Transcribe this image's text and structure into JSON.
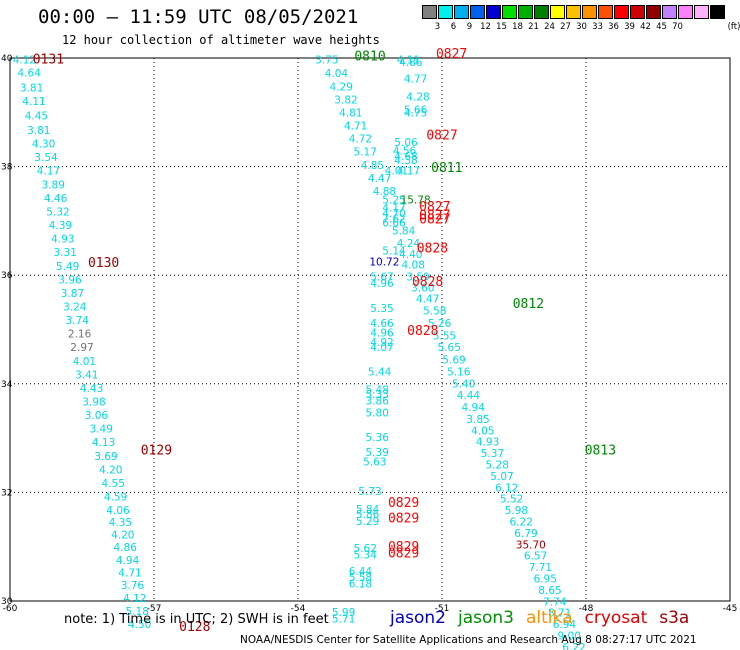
{
  "header": {
    "title": "00:00 – 11:59 UTC 08/05/2021",
    "subtitle": "12 hour collection of altimeter wave heights"
  },
  "scale": {
    "unit": "(ft)",
    "colors": [
      "#808080",
      "#00f0f0",
      "#00b0f0",
      "#0060f0",
      "#0000d0",
      "#00e000",
      "#00b000",
      "#008000",
      "#ffff00",
      "#ffc000",
      "#ff9000",
      "#ff5000",
      "#ff0000",
      "#d00000",
      "#900000",
      "#c080ff",
      "#ff80ff",
      "#ffb0ff",
      "#000000"
    ],
    "labels": [
      "3",
      "6",
      "9",
      "12",
      "15",
      "18",
      "21",
      "24",
      "27",
      "30",
      "33",
      "36",
      "39",
      "42",
      "45",
      "70"
    ]
  },
  "axes": {
    "x_labels": [
      "-60",
      "-57",
      "-54",
      "-51",
      "-48",
      "-45"
    ],
    "y_labels": [
      "40",
      "38",
      "36",
      "34",
      "32",
      "30"
    ]
  },
  "observations": [
    {
      "t": "4.12",
      "lon": -59.7,
      "lat": 39.9,
      "c": "cyan"
    },
    {
      "t": "4.64",
      "lon": -59.6,
      "lat": 39.66,
      "c": "cyan"
    },
    {
      "t": "3.81",
      "lon": -59.55,
      "lat": 39.38,
      "c": "cyan"
    },
    {
      "t": "4.11",
      "lon": -59.5,
      "lat": 39.13,
      "c": "cyan"
    },
    {
      "t": "4.45",
      "lon": -59.45,
      "lat": 38.87,
      "c": "cyan"
    },
    {
      "t": "3.81",
      "lon": -59.4,
      "lat": 38.6,
      "c": "cyan"
    },
    {
      "t": "4.30",
      "lon": -59.3,
      "lat": 38.35,
      "c": "cyan"
    },
    {
      "t": "3.54",
      "lon": -59.25,
      "lat": 38.1,
      "c": "cyan"
    },
    {
      "t": "4.17",
      "lon": -59.2,
      "lat": 37.85,
      "c": "cyan"
    },
    {
      "t": "3.89",
      "lon": -59.1,
      "lat": 37.6,
      "c": "cyan"
    },
    {
      "t": "4.46",
      "lon": -59.05,
      "lat": 37.35,
      "c": "cyan"
    },
    {
      "t": "5.32",
      "lon": -59.0,
      "lat": 37.1,
      "c": "cyan"
    },
    {
      "t": "4.39",
      "lon": -58.95,
      "lat": 36.85,
      "c": "cyan"
    },
    {
      "t": "4.93",
      "lon": -58.9,
      "lat": 36.6,
      "c": "cyan"
    },
    {
      "t": "3.31",
      "lon": -58.85,
      "lat": 36.35,
      "c": "cyan"
    },
    {
      "t": "5.49",
      "lon": -58.8,
      "lat": 36.1,
      "c": "cyan"
    },
    {
      "t": "3.96",
      "lon": -58.75,
      "lat": 35.85,
      "c": "cyan"
    },
    {
      "t": "3.87",
      "lon": -58.7,
      "lat": 35.6,
      "c": "cyan"
    },
    {
      "t": "3.24",
      "lon": -58.65,
      "lat": 35.35,
      "c": "cyan"
    },
    {
      "t": "3.74",
      "lon": -58.6,
      "lat": 35.1,
      "c": "cyan"
    },
    {
      "t": "2.16",
      "lon": -58.55,
      "lat": 34.85,
      "c": "gray"
    },
    {
      "t": "2.97",
      "lon": -58.5,
      "lat": 34.6,
      "c": "gray"
    },
    {
      "t": "4.01",
      "lon": -58.45,
      "lat": 34.35,
      "c": "cyan"
    },
    {
      "t": "3.41",
      "lon": -58.4,
      "lat": 34.1,
      "c": "cyan"
    },
    {
      "t": "4.43",
      "lon": -58.3,
      "lat": 33.85,
      "c": "cyan"
    },
    {
      "t": "3.98",
      "lon": -58.25,
      "lat": 33.6,
      "c": "cyan"
    },
    {
      "t": "3.06",
      "lon": -58.2,
      "lat": 33.35,
      "c": "cyan"
    },
    {
      "t": "3.49",
      "lon": -58.1,
      "lat": 33.1,
      "c": "cyan"
    },
    {
      "t": "4.13",
      "lon": -58.05,
      "lat": 32.85,
      "c": "cyan"
    },
    {
      "t": "3.69",
      "lon": -58.0,
      "lat": 32.6,
      "c": "cyan"
    },
    {
      "t": "4.20",
      "lon": -57.9,
      "lat": 32.35,
      "c": "cyan"
    },
    {
      "t": "4.55",
      "lon": -57.85,
      "lat": 32.1,
      "c": "cyan"
    },
    {
      "t": "4.59",
      "lon": -57.8,
      "lat": 31.85,
      "c": "cyan"
    },
    {
      "t": "4.06",
      "lon": -57.75,
      "lat": 31.6,
      "c": "cyan"
    },
    {
      "t": "4.35",
      "lon": -57.7,
      "lat": 31.38,
      "c": "cyan"
    },
    {
      "t": "4.20",
      "lon": -57.65,
      "lat": 31.15,
      "c": "cyan"
    },
    {
      "t": "4.86",
      "lon": -57.6,
      "lat": 30.92,
      "c": "cyan"
    },
    {
      "t": "4.94",
      "lon": -57.55,
      "lat": 30.68,
      "c": "cyan"
    },
    {
      "t": "4.71",
      "lon": -57.5,
      "lat": 30.45,
      "c": "cyan"
    },
    {
      "t": "3.76",
      "lon": -57.45,
      "lat": 30.22,
      "c": "cyan"
    },
    {
      "t": "4.12",
      "lon": -57.4,
      "lat": 29.98,
      "c": "cyan"
    },
    {
      "t": "5.18",
      "lon": -57.35,
      "lat": 29.74,
      "c": "cyan"
    },
    {
      "t": "4.50",
      "lon": -57.3,
      "lat": 29.5,
      "c": "cyan"
    },
    {
      "t": "3.75",
      "lon": -53.4,
      "lat": 39.9,
      "c": "cyan"
    },
    {
      "t": "4.04",
      "lon": -53.2,
      "lat": 39.65,
      "c": "cyan"
    },
    {
      "t": "4.29",
      "lon": -53.1,
      "lat": 39.4,
      "c": "cyan"
    },
    {
      "t": "3.82",
      "lon": -53.0,
      "lat": 39.16,
      "c": "cyan"
    },
    {
      "t": "4.81",
      "lon": -52.9,
      "lat": 38.92,
      "c": "cyan"
    },
    {
      "t": "4.71",
      "lon": -52.8,
      "lat": 38.68,
      "c": "cyan"
    },
    {
      "t": "4.72",
      "lon": -52.7,
      "lat": 38.44,
      "c": "cyan"
    },
    {
      "t": "5.17",
      "lon": -52.6,
      "lat": 38.2,
      "c": "cyan"
    },
    {
      "t": "4.85",
      "lon": -52.45,
      "lat": 37.96,
      "c": "cyan"
    },
    {
      "t": "4.47",
      "lon": -52.3,
      "lat": 37.72,
      "c": "cyan"
    },
    {
      "t": "4.88",
      "lon": -52.2,
      "lat": 37.48,
      "c": "cyan"
    },
    {
      "t": "5.84",
      "lon": -51.8,
      "lat": 36.75,
      "c": "cyan"
    },
    {
      "t": "4.24",
      "lon": -51.7,
      "lat": 36.52,
      "c": "cyan"
    },
    {
      "t": "4.40",
      "lon": -51.65,
      "lat": 36.32,
      "c": "cyan"
    },
    {
      "t": "4.08",
      "lon": -51.6,
      "lat": 36.12,
      "c": "cyan"
    },
    {
      "t": "3.59",
      "lon": -51.5,
      "lat": 35.9,
      "c": "cyan"
    },
    {
      "t": "3.60",
      "lon": -51.4,
      "lat": 35.7,
      "c": "cyan"
    },
    {
      "t": "4.47",
      "lon": -51.3,
      "lat": 35.5,
      "c": "cyan"
    },
    {
      "t": "5.58",
      "lon": -51.15,
      "lat": 35.28,
      "c": "cyan"
    },
    {
      "t": "5.26",
      "lon": -51.05,
      "lat": 35.05,
      "c": "cyan"
    },
    {
      "t": "5.55",
      "lon": -50.95,
      "lat": 34.82,
      "c": "cyan"
    },
    {
      "t": "5.65",
      "lon": -50.85,
      "lat": 34.6,
      "c": "cyan"
    },
    {
      "t": "5.69",
      "lon": -50.75,
      "lat": 34.37,
      "c": "cyan"
    },
    {
      "t": "5.16",
      "lon": -50.65,
      "lat": 34.15,
      "c": "cyan"
    },
    {
      "t": "5.40",
      "lon": -50.55,
      "lat": 33.93,
      "c": "cyan"
    },
    {
      "t": "4.44",
      "lon": -50.45,
      "lat": 33.72,
      "c": "cyan"
    },
    {
      "t": "4.94",
      "lon": -50.35,
      "lat": 33.5,
      "c": "cyan"
    },
    {
      "t": "3.85",
      "lon": -50.25,
      "lat": 33.28,
      "c": "cyan"
    },
    {
      "t": "4.05",
      "lon": -50.15,
      "lat": 33.07,
      "c": "cyan"
    },
    {
      "t": "4.93",
      "lon": -50.05,
      "lat": 32.86,
      "c": "cyan"
    },
    {
      "t": "5.37",
      "lon": -49.95,
      "lat": 32.65,
      "c": "cyan"
    },
    {
      "t": "5.28",
      "lon": -49.85,
      "lat": 32.44,
      "c": "cyan"
    },
    {
      "t": "5.07",
      "lon": -49.75,
      "lat": 32.23,
      "c": "cyan"
    },
    {
      "t": "6.12",
      "lon": -49.65,
      "lat": 32.02,
      "c": "cyan"
    },
    {
      "t": "5.52",
      "lon": -49.55,
      "lat": 31.81,
      "c": "cyan"
    },
    {
      "t": "5.98",
      "lon": -49.45,
      "lat": 31.6,
      "c": "cyan"
    },
    {
      "t": "6.22",
      "lon": -49.35,
      "lat": 31.39,
      "c": "cyan"
    },
    {
      "t": "6.79",
      "lon": -49.25,
      "lat": 31.18,
      "c": "cyan"
    },
    {
      "t": "35.70",
      "lon": -49.15,
      "lat": 30.97,
      "c": "darkred"
    },
    {
      "t": "6.57",
      "lon": -49.05,
      "lat": 30.76,
      "c": "cyan"
    },
    {
      "t": "7.71",
      "lon": -48.95,
      "lat": 30.55,
      "c": "cyan"
    },
    {
      "t": "6.95",
      "lon": -48.85,
      "lat": 30.34,
      "c": "cyan"
    },
    {
      "t": "8.65",
      "lon": -48.75,
      "lat": 30.13,
      "c": "cyan"
    },
    {
      "t": "7.74",
      "lon": -48.65,
      "lat": 29.92,
      "c": "cyan"
    },
    {
      "t": "8.71",
      "lon": -48.55,
      "lat": 29.71,
      "c": "cyan"
    },
    {
      "t": "6.94",
      "lon": -48.45,
      "lat": 29.5,
      "c": "cyan"
    },
    {
      "t": "9.00",
      "lon": -48.35,
      "lat": 29.29,
      "c": "cyan"
    },
    {
      "t": "6.22",
      "lon": -48.25,
      "lat": 29.08,
      "c": "cyan"
    },
    {
      "t": "4.11",
      "lon": -51.7,
      "lat": 39.9,
      "c": "cyan"
    },
    {
      "t": "4.86",
      "lon": -51.65,
      "lat": 39.85,
      "c": "cyan"
    },
    {
      "t": "4.77",
      "lon": -51.55,
      "lat": 39.55,
      "c": "cyan"
    },
    {
      "t": "4.28",
      "lon": -51.5,
      "lat": 39.22,
      "c": "cyan"
    },
    {
      "t": "5.66",
      "lon": -51.55,
      "lat": 38.98,
      "c": "cyan"
    },
    {
      "t": "4.75",
      "lon": -51.55,
      "lat": 38.92,
      "c": "cyan"
    },
    {
      "t": "5.06",
      "lon": -51.75,
      "lat": 38.38,
      "c": "cyan"
    },
    {
      "t": "4.56",
      "lon": -51.78,
      "lat": 38.22,
      "c": "cyan"
    },
    {
      "t": "4.68",
      "lon": -51.75,
      "lat": 38.12,
      "c": "cyan"
    },
    {
      "t": "4.38",
      "lon": -51.75,
      "lat": 38.05,
      "c": "cyan"
    },
    {
      "t": "4.01",
      "lon": -51.95,
      "lat": 37.85,
      "c": "cyan"
    },
    {
      "t": "4.17",
      "lon": -51.7,
      "lat": 37.85,
      "c": "cyan"
    },
    {
      "t": "5.25",
      "lon": -52.0,
      "lat": 37.32,
      "c": "cyan"
    },
    {
      "t": "15.78",
      "lon": -51.55,
      "lat": 37.32,
      "c": "green"
    },
    {
      "t": "4.17",
      "lon": -52.0,
      "lat": 37.17,
      "c": "cyan"
    },
    {
      "t": "4.70",
      "lon": -52.0,
      "lat": 37.07,
      "c": "cyan"
    },
    {
      "t": "7.62",
      "lon": -52.0,
      "lat": 36.97,
      "c": "cyan"
    },
    {
      "t": "6.66",
      "lon": -52.0,
      "lat": 36.9,
      "c": "cyan"
    },
    {
      "t": "5.14",
      "lon": -52.0,
      "lat": 36.38,
      "c": "cyan"
    },
    {
      "t": "10.72",
      "lon": -52.2,
      "lat": 36.18,
      "c": "blue"
    },
    {
      "t": "5.67",
      "lon": -52.25,
      "lat": 35.9,
      "c": "cyan"
    },
    {
      "t": "4.96",
      "lon": -52.25,
      "lat": 35.78,
      "c": "cyan"
    },
    {
      "t": "5.35",
      "lon": -52.25,
      "lat": 35.32,
      "c": "cyan"
    },
    {
      "t": "4.66",
      "lon": -52.25,
      "lat": 35.05,
      "c": "cyan"
    },
    {
      "t": "4.96",
      "lon": -52.25,
      "lat": 34.87,
      "c": "cyan"
    },
    {
      "t": "4.92",
      "lon": -52.25,
      "lat": 34.7,
      "c": "cyan"
    },
    {
      "t": "4.07",
      "lon": -52.25,
      "lat": 34.6,
      "c": "cyan"
    },
    {
      "t": "5.44",
      "lon": -52.3,
      "lat": 34.15,
      "c": "cyan"
    },
    {
      "t": "5.48",
      "lon": -52.35,
      "lat": 33.82,
      "c": "cyan"
    },
    {
      "t": "5.33",
      "lon": -52.35,
      "lat": 33.74,
      "c": "cyan"
    },
    {
      "t": "3.86",
      "lon": -52.35,
      "lat": 33.62,
      "c": "cyan"
    },
    {
      "t": "5.80",
      "lon": -52.35,
      "lat": 33.4,
      "c": "cyan"
    },
    {
      "t": "5.36",
      "lon": -52.35,
      "lat": 32.95,
      "c": "cyan"
    },
    {
      "t": "5.39",
      "lon": -52.35,
      "lat": 32.67,
      "c": "cyan"
    },
    {
      "t": "5.63",
      "lon": -52.4,
      "lat": 32.5,
      "c": "cyan"
    },
    {
      "t": "5.73",
      "lon": -52.5,
      "lat": 31.95,
      "c": "cyan"
    },
    {
      "t": "5.84",
      "lon": -52.55,
      "lat": 31.62,
      "c": "cyan"
    },
    {
      "t": "5.86",
      "lon": -52.55,
      "lat": 31.53,
      "c": "cyan"
    },
    {
      "t": "5.29",
      "lon": -52.55,
      "lat": 31.4,
      "c": "cyan"
    },
    {
      "t": "5.62",
      "lon": -52.6,
      "lat": 30.9,
      "c": "cyan"
    },
    {
      "t": "5.34",
      "lon": -52.6,
      "lat": 30.78,
      "c": "cyan"
    },
    {
      "t": "6.44",
      "lon": -52.7,
      "lat": 30.48,
      "c": "cyan"
    },
    {
      "t": "5.58",
      "lon": -52.7,
      "lat": 30.37,
      "c": "cyan"
    },
    {
      "t": "6.18",
      "lon": -52.7,
      "lat": 30.25,
      "c": "cyan"
    },
    {
      "t": "5.99",
      "lon": -53.05,
      "lat": 29.72,
      "c": "cyan"
    },
    {
      "t": "5.71",
      "lon": -53.05,
      "lat": 29.6,
      "c": "cyan"
    }
  ],
  "pass_labels": [
    {
      "t": "0131",
      "lon": -59.2,
      "lat": 39.9,
      "c": "darkred"
    },
    {
      "t": "0130",
      "lon": -58.05,
      "lat": 36.15,
      "c": "darkred"
    },
    {
      "t": "0129",
      "lon": -56.95,
      "lat": 32.7,
      "c": "darkred"
    },
    {
      "t": "0128",
      "lon": -56.15,
      "lat": 29.45,
      "c": "darkred"
    },
    {
      "t": "0810",
      "lon": -52.5,
      "lat": 39.95,
      "c": "green"
    },
    {
      "t": "0827",
      "lon": -50.8,
      "lat": 40.0,
      "c": "red"
    },
    {
      "t": "0827",
      "lon": -51.0,
      "lat": 38.5,
      "c": "red"
    },
    {
      "t": "0811",
      "lon": -50.9,
      "lat": 37.9,
      "c": "green"
    },
    {
      "t": "0827",
      "lon": -51.15,
      "lat": 37.18,
      "c": "red"
    },
    {
      "t": "0827",
      "lon": -51.15,
      "lat": 37.03,
      "c": "red"
    },
    {
      "t": "0827",
      "lon": -51.15,
      "lat": 36.95,
      "c": "red"
    },
    {
      "t": "0828",
      "lon": -51.2,
      "lat": 36.42,
      "c": "red"
    },
    {
      "t": "0828",
      "lon": -51.3,
      "lat": 35.8,
      "c": "red"
    },
    {
      "t": "0812",
      "lon": -49.2,
      "lat": 35.4,
      "c": "green"
    },
    {
      "t": "0828",
      "lon": -51.4,
      "lat": 34.9,
      "c": "red"
    },
    {
      "t": "0813",
      "lon": -47.7,
      "lat": 32.7,
      "c": "green"
    },
    {
      "t": "0829",
      "lon": -51.8,
      "lat": 31.73,
      "c": "red"
    },
    {
      "t": "0829",
      "lon": -51.8,
      "lat": 31.45,
      "c": "red"
    },
    {
      "t": "0829",
      "lon": -51.8,
      "lat": 30.92,
      "c": "red"
    },
    {
      "t": "0829",
      "lon": -51.8,
      "lat": 30.8,
      "c": "red"
    }
  ],
  "note": "note:  1) Time is in UTC;  2) SWH is in feet",
  "legend": [
    {
      "name": "jason2",
      "color": "#0000c0"
    },
    {
      "name": "jason3",
      "color": "#009000"
    },
    {
      "name": "altika",
      "color": "#ff9000"
    },
    {
      "name": "cryosat",
      "color": "#e00000"
    },
    {
      "name": "s3a",
      "color": "#a00000"
    }
  ],
  "footer": "NOAA/NESDIS Center for Satellite Applications and Research    Aug  8 08:27:17 UTC 2021"
}
